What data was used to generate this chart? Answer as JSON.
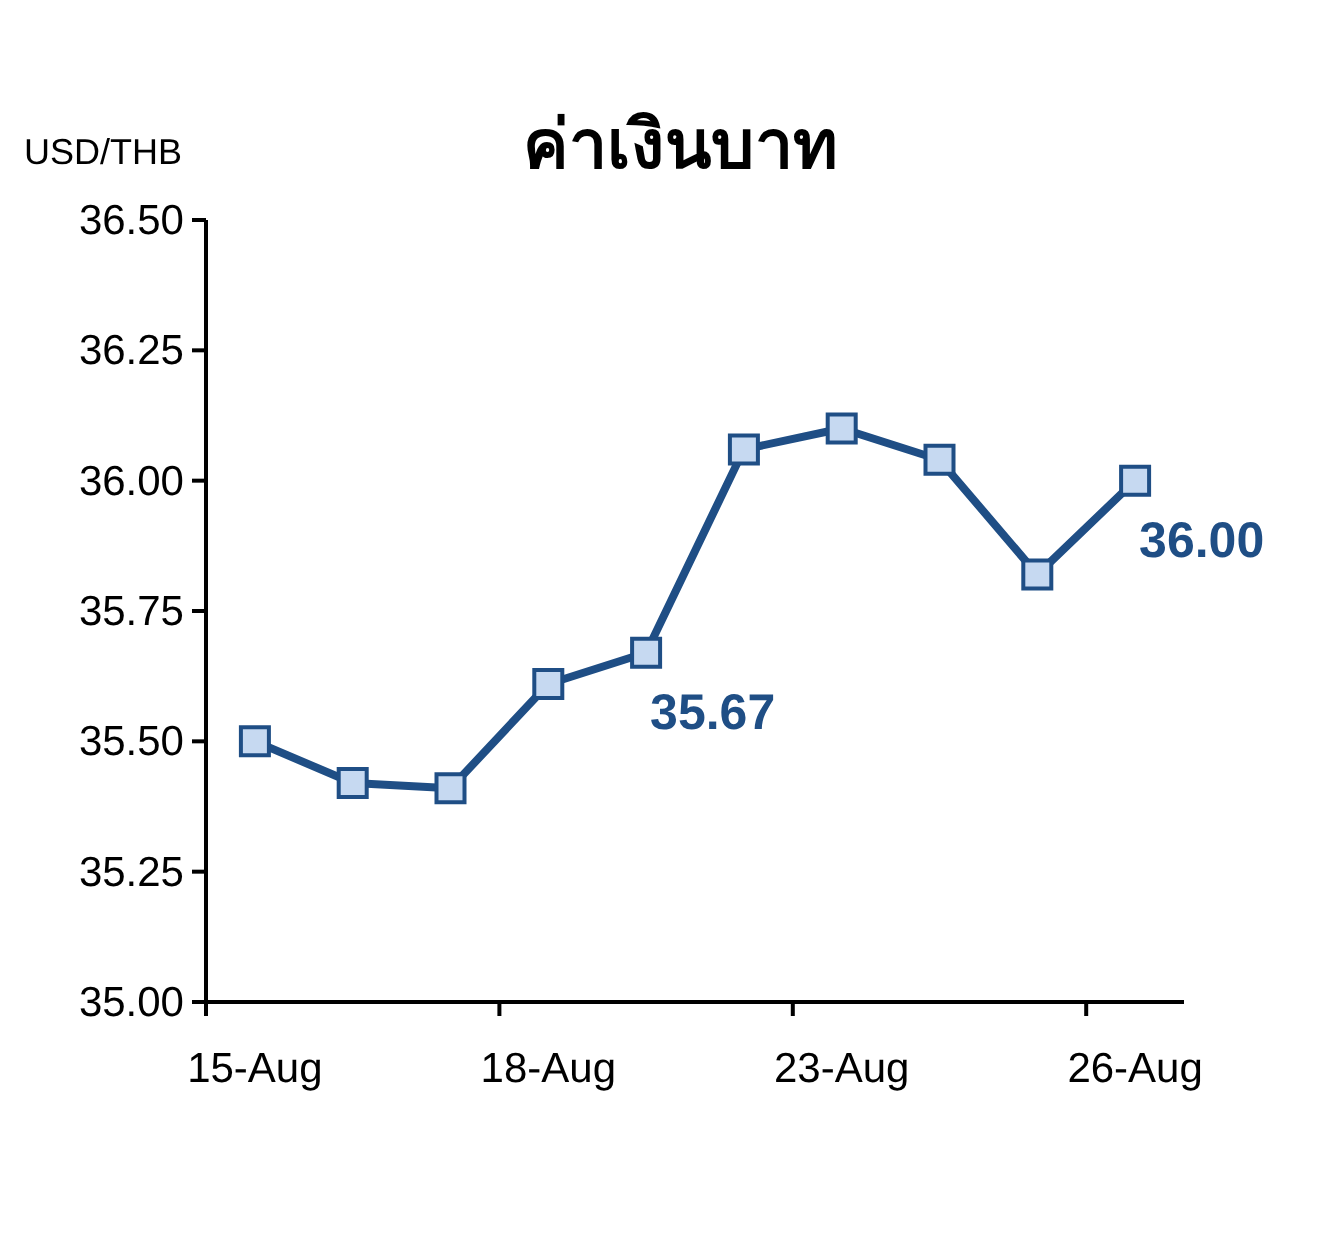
{
  "chart_data": {
    "type": "line",
    "title": "ค่าเงินบาท",
    "ylabel": "USD/THB",
    "categories": [
      "15-Aug",
      null,
      null,
      "18-Aug",
      null,
      null,
      "23-Aug",
      null,
      null,
      "26-Aug"
    ],
    "series": [
      {
        "color": "#1f4e85",
        "values": [
          35.5,
          35.42,
          35.41,
          35.61,
          35.67,
          36.06,
          36.1,
          36.04,
          35.82,
          36.0
        ],
        "value_labels": [
          null,
          null,
          null,
          null,
          "35.67",
          null,
          null,
          null,
          null,
          "36.00"
        ]
      }
    ],
    "ylim": [
      35.0,
      36.5
    ],
    "yticks": [
      {
        "value": 35.0,
        "label": "35.00"
      },
      {
        "value": 35.25,
        "label": "35.25"
      },
      {
        "value": 35.5,
        "label": "35.50"
      },
      {
        "value": 35.75,
        "label": "35.75"
      },
      {
        "value": 36.0,
        "label": "36.00"
      },
      {
        "value": 36.25,
        "label": "36.25"
      },
      {
        "value": 36.5,
        "label": "36.50"
      }
    ],
    "marker": "square"
  }
}
